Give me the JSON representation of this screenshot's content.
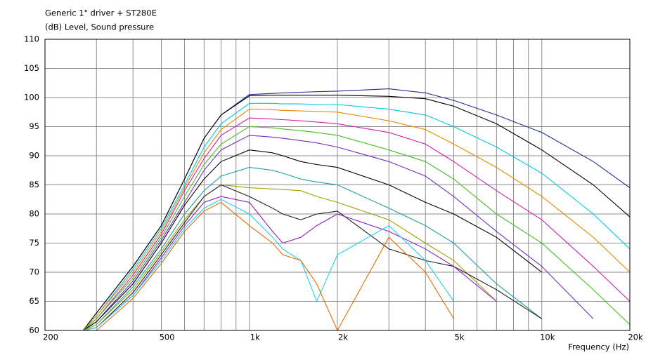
{
  "chart_data": {
    "type": "line",
    "title": "Generic 1\" driver + ST280E",
    "ylabel": "(dB)  Level, Sound pressure",
    "xlabel": "Frequency  (Hz)",
    "xscale": "log",
    "grid": true,
    "xlim": [
      200,
      20000
    ],
    "ylim": [
      60,
      110
    ],
    "xticks": [
      {
        "value": 200,
        "label": "200"
      },
      {
        "value": 500,
        "label": "500"
      },
      {
        "value": 1000,
        "label": "1k"
      },
      {
        "value": 2000,
        "label": "2k"
      },
      {
        "value": 5000,
        "label": "5k"
      },
      {
        "value": 10000,
        "label": "10k"
      },
      {
        "value": 20000,
        "label": "20k"
      }
    ],
    "minor_xticks": [
      300,
      400,
      600,
      700,
      800,
      900,
      3000,
      4000,
      6000,
      7000,
      8000,
      9000
    ],
    "yticks": [
      60,
      65,
      70,
      75,
      80,
      85,
      90,
      95,
      100,
      105,
      110
    ],
    "x": [
      270,
      300,
      400,
      500,
      600,
      700,
      800,
      1000,
      1200,
      1300,
      1500,
      1700,
      2000,
      3000,
      4000,
      5000,
      7000,
      10000,
      15000,
      20000
    ],
    "series": [
      {
        "color": "#1f2f8f",
        "values": [
          60,
          63,
          71,
          78,
          86,
          93,
          97,
          100.5,
          100.7,
          100.8,
          100.9,
          101,
          101.1,
          101.5,
          100.8,
          99.5,
          97,
          94,
          89,
          84.5
        ]
      },
      {
        "color": "#000000",
        "values": [
          60,
          63,
          71,
          78,
          86,
          93,
          97,
          100.3,
          100.4,
          100.4,
          100.4,
          100.4,
          100.4,
          100.2,
          99.8,
          98.5,
          95.5,
          91,
          85,
          79.5
        ]
      },
      {
        "color": "#00c8e6",
        "values": [
          60,
          62.5,
          70.5,
          77.5,
          85,
          91.5,
          95.5,
          99,
          99,
          98.9,
          98.9,
          98.8,
          98.8,
          98,
          97,
          95,
          91.5,
          87,
          80,
          74
        ]
      },
      {
        "color": "#e68c00",
        "values": [
          60,
          62.5,
          70,
          77,
          84.5,
          90.5,
          94.5,
          98,
          97.9,
          97.8,
          97.7,
          97.6,
          97.5,
          96,
          94.5,
          92,
          88,
          83,
          76,
          70
        ]
      },
      {
        "color": "#d020b0",
        "values": [
          60,
          62,
          69.5,
          76.5,
          84,
          89.5,
          93.5,
          96.5,
          96.3,
          96.2,
          96,
          95.8,
          95.5,
          94,
          92,
          89,
          84,
          79,
          71,
          65
        ]
      },
      {
        "color": "#40c020",
        "values": [
          60,
          62,
          69,
          76,
          83,
          88.5,
          92,
          95,
          94.8,
          94.6,
          94.3,
          94,
          93.5,
          91,
          89,
          86,
          80,
          75,
          67,
          61
        ]
      },
      {
        "color": "#7030c0",
        "values": [
          60,
          61.5,
          68.5,
          75.5,
          82,
          87.5,
          91,
          93.5,
          93.2,
          93,
          92.6,
          92.2,
          91.5,
          89,
          86.5,
          83,
          77,
          71,
          62,
          null
        ]
      },
      {
        "color": "#000000",
        "values": [
          60,
          61.5,
          68,
          75,
          81.5,
          86,
          89,
          91,
          90.5,
          90,
          89,
          88.5,
          88,
          85,
          82,
          80,
          76,
          70,
          null,
          null
        ]
      },
      {
        "color": "#20a0a0",
        "values": [
          60,
          61,
          67.5,
          74,
          80,
          84,
          86.5,
          88,
          87.5,
          87,
          86,
          85.5,
          85,
          81,
          78,
          75,
          68,
          62,
          null,
          null
        ]
      },
      {
        "color": "#a0a000",
        "values": [
          60,
          61,
          67,
          73.5,
          79,
          83,
          85,
          84.5,
          84.3,
          84.2,
          84,
          83,
          82,
          79,
          75,
          72,
          65,
          null,
          null,
          null
        ]
      },
      {
        "color": "#202020",
        "values": [
          60,
          60.5,
          66.5,
          73,
          78.5,
          83,
          85,
          83,
          81,
          80,
          79,
          80,
          80.5,
          74,
          72,
          71,
          67,
          62,
          null,
          null
        ]
      },
      {
        "color": "#9020c0",
        "values": [
          60,
          60.5,
          66,
          72.5,
          78,
          82,
          83,
          82,
          77,
          75,
          76,
          78,
          80,
          77,
          74,
          71,
          65,
          null,
          null,
          null
        ]
      },
      {
        "color": "#20d0f0",
        "values": [
          60,
          60.5,
          66,
          72,
          77.5,
          81,
          82.5,
          80,
          76,
          74,
          72,
          65,
          73,
          78,
          72,
          65,
          null,
          null,
          null,
          null
        ]
      },
      {
        "color": "#e07000",
        "values": [
          60,
          60,
          65.5,
          71.5,
          77,
          80.5,
          82,
          78,
          75,
          73,
          72,
          68,
          60,
          76,
          70,
          62,
          null,
          null,
          null,
          null
        ]
      }
    ]
  }
}
